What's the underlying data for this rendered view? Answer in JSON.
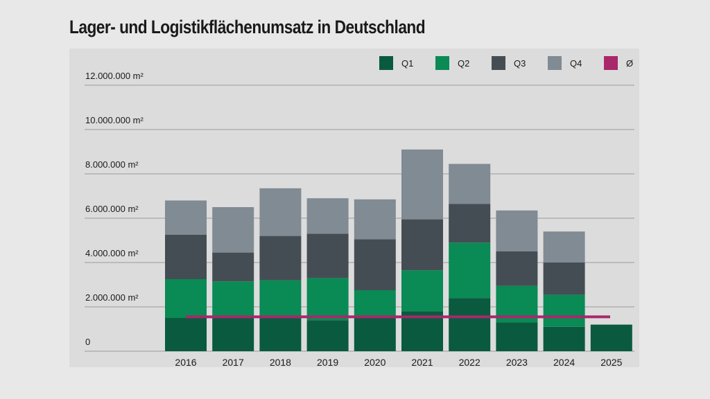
{
  "title": "Lager- und Logistikflächenumsatz in Deutschland",
  "chart_data": {
    "type": "bar",
    "stacked": true,
    "title": "Lager- und Logistikflächenumsatz in Deutschland",
    "categories": [
      "2016",
      "2017",
      "2018",
      "2019",
      "2020",
      "2021",
      "2022",
      "2023",
      "2024",
      "2025"
    ],
    "series": [
      {
        "name": "Q1",
        "color": "#0a5a40",
        "values": [
          1500000,
          1500000,
          1600000,
          1400000,
          1500000,
          1800000,
          2400000,
          1300000,
          1100000,
          1200000
        ]
      },
      {
        "name": "Q2",
        "color": "#0a8a55",
        "values": [
          1750000,
          1650000,
          1600000,
          1900000,
          1250000,
          1850000,
          2500000,
          1650000,
          1450000,
          0
        ]
      },
      {
        "name": "Q3",
        "color": "#454d54",
        "values": [
          2000000,
          1300000,
          2000000,
          2000000,
          2300000,
          2300000,
          1750000,
          1550000,
          1450000,
          0
        ]
      },
      {
        "name": "Q4",
        "color": "#808b94",
        "values": [
          1550000,
          2050000,
          2150000,
          1600000,
          1800000,
          3150000,
          1800000,
          1850000,
          1400000,
          0
        ]
      }
    ],
    "average_line": {
      "name": "Ø",
      "color": "#a8286a",
      "value": 1550000
    },
    "y_ticks": [
      "0",
      "2.000.000 m²",
      "4.000.000 m²",
      "6.000.000 m²",
      "8.000.000 m²",
      "10.000.000 m²",
      "12.000.000 m²"
    ],
    "ylim": [
      0,
      12000000
    ],
    "grid": true,
    "legend_position": "top-right"
  }
}
